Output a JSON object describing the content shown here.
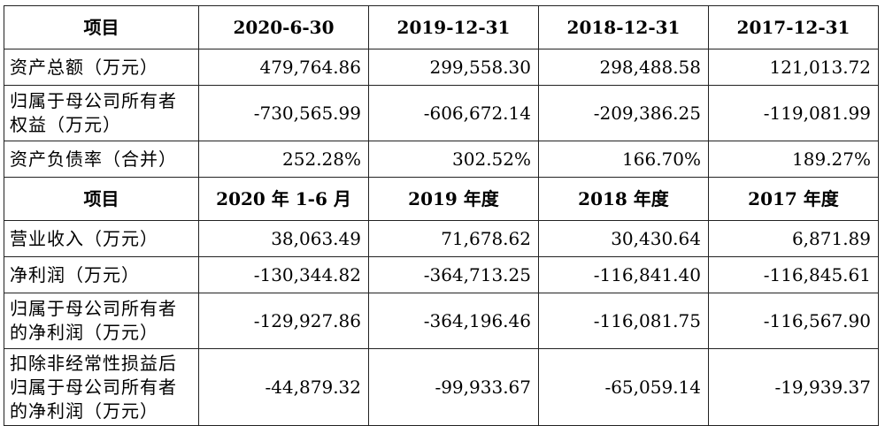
{
  "table": {
    "section1": {
      "headers": [
        "项目",
        "2020-6-30",
        "2019-12-31",
        "2018-12-31",
        "2017-12-31"
      ],
      "rows": [
        {
          "label": "资产总额（万元）",
          "values": [
            "479,764.86",
            "299,558.30",
            "298,488.58",
            "121,013.72"
          ]
        },
        {
          "label": "归属于母公司所有者权益（万元）",
          "values": [
            "-730,565.99",
            "-606,672.14",
            "-209,386.25",
            "-119,081.99"
          ]
        },
        {
          "label": "资产负债率（合并）",
          "values": [
            "252.28%",
            "302.52%",
            "166.70%",
            "189.27%"
          ]
        }
      ]
    },
    "section2": {
      "headers": [
        "项目",
        "2020 年 1-6 月",
        "2019 年度",
        "2018 年度",
        "2017 年度"
      ],
      "rows": [
        {
          "label": "营业收入（万元）",
          "values": [
            "38,063.49",
            "71,678.62",
            "30,430.64",
            "6,871.89"
          ]
        },
        {
          "label": "净利润（万元）",
          "values": [
            "-130,344.82",
            "-364,713.25",
            "-116,841.40",
            "-116,845.61"
          ]
        },
        {
          "label": "归属于母公司所有者的净利润（万元）",
          "values": [
            "-129,927.86",
            "-364,196.46",
            "-116,081.75",
            "-116,567.90"
          ]
        },
        {
          "label": "扣除非经常性损益后归属于母公司所有者的净利润（万元）",
          "values": [
            "-44,879.32",
            "-99,933.67",
            "-65,059.14",
            "-19,939.37"
          ]
        }
      ]
    }
  }
}
